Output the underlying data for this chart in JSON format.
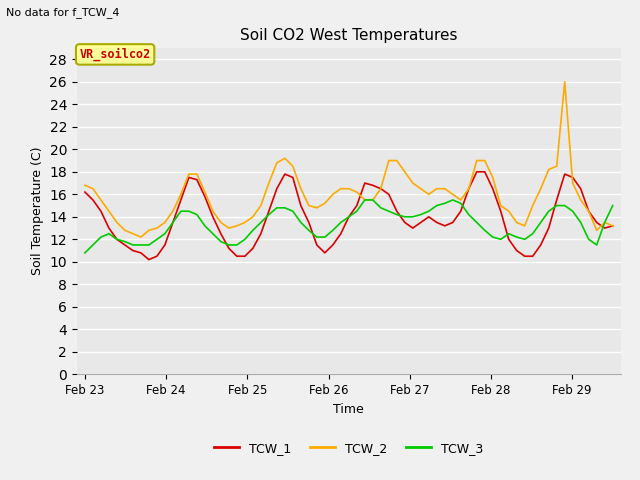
{
  "title": "Soil CO2 West Temperatures",
  "no_data_text": "No data for f_TCW_4",
  "xlabel": "Time",
  "ylabel": "Soil Temperature (C)",
  "ylim": [
    0,
    29
  ],
  "yticks": [
    0,
    2,
    4,
    6,
    8,
    10,
    12,
    14,
    16,
    18,
    20,
    22,
    24,
    26,
    28
  ],
  "bg_color": "#e8e8e8",
  "fig_color": "#f0f0f0",
  "grid_color": "#ffffff",
  "annotation_box_text": "VR_soilco2",
  "annotation_box_color": "#ffff99",
  "annotation_box_edge_color": "#aaaa00",
  "annotation_text_color": "#cc0000",
  "TCW_1_color": "#dd0000",
  "TCW_2_color": "#ffaa00",
  "TCW_3_color": "#00cc00",
  "xtick_labels": [
    "Feb 23",
    "Feb 24",
    "Feb 25",
    "Feb 26",
    "Feb 27",
    "Feb 28",
    "Feb 29"
  ],
  "xtick_positions": [
    0,
    1,
    2,
    3,
    4,
    5,
    6
  ],
  "TCW_1": [
    16.2,
    15.5,
    14.5,
    13.0,
    12.0,
    11.5,
    11.0,
    10.8,
    10.2,
    10.5,
    11.5,
    13.5,
    15.5,
    17.5,
    17.3,
    15.8,
    14.0,
    12.5,
    11.2,
    10.5,
    10.5,
    11.2,
    12.5,
    14.5,
    16.5,
    17.8,
    17.5,
    15.0,
    13.5,
    11.5,
    10.8,
    11.5,
    12.5,
    14.0,
    15.0,
    17.0,
    16.8,
    16.5,
    16.0,
    14.5,
    13.5,
    13.0,
    13.5,
    14.0,
    13.5,
    13.2,
    13.5,
    14.5,
    16.5,
    18.0,
    18.0,
    16.5,
    14.5,
    12.0,
    11.0,
    10.5,
    10.5,
    11.5,
    13.0,
    15.5,
    17.8,
    17.5,
    16.5,
    14.5,
    13.5,
    13.0,
    13.2
  ],
  "TCW_2": [
    16.8,
    16.5,
    15.5,
    14.5,
    13.5,
    12.8,
    12.5,
    12.2,
    12.8,
    13.0,
    13.5,
    14.5,
    16.0,
    17.8,
    17.8,
    16.2,
    14.5,
    13.5,
    13.0,
    13.2,
    13.5,
    14.0,
    15.0,
    17.0,
    18.8,
    19.2,
    18.5,
    16.5,
    15.0,
    14.8,
    15.2,
    16.0,
    16.5,
    16.5,
    16.2,
    15.5,
    15.5,
    16.5,
    19.0,
    19.0,
    18.0,
    17.0,
    16.5,
    16.0,
    16.5,
    16.5,
    16.0,
    15.5,
    16.5,
    19.0,
    19.0,
    17.5,
    15.0,
    14.5,
    13.5,
    13.2,
    15.0,
    16.5,
    18.2,
    18.5,
    26.0,
    17.0,
    15.5,
    14.5,
    12.8,
    13.5,
    13.2
  ],
  "TCW_3": [
    10.8,
    11.5,
    12.2,
    12.5,
    12.0,
    11.8,
    11.5,
    11.5,
    11.5,
    12.0,
    12.5,
    13.5,
    14.5,
    14.5,
    14.2,
    13.2,
    12.5,
    11.8,
    11.5,
    11.5,
    12.0,
    12.8,
    13.5,
    14.2,
    14.8,
    14.8,
    14.5,
    13.5,
    12.8,
    12.2,
    12.2,
    12.8,
    13.5,
    14.0,
    14.5,
    15.5,
    15.5,
    14.8,
    14.5,
    14.2,
    14.0,
    14.0,
    14.2,
    14.5,
    15.0,
    15.2,
    15.5,
    15.2,
    14.2,
    13.5,
    12.8,
    12.2,
    12.0,
    12.5,
    12.2,
    12.0,
    12.5,
    13.5,
    14.5,
    15.0,
    15.0,
    14.5,
    13.5,
    12.0,
    11.5,
    13.5,
    15.0
  ]
}
